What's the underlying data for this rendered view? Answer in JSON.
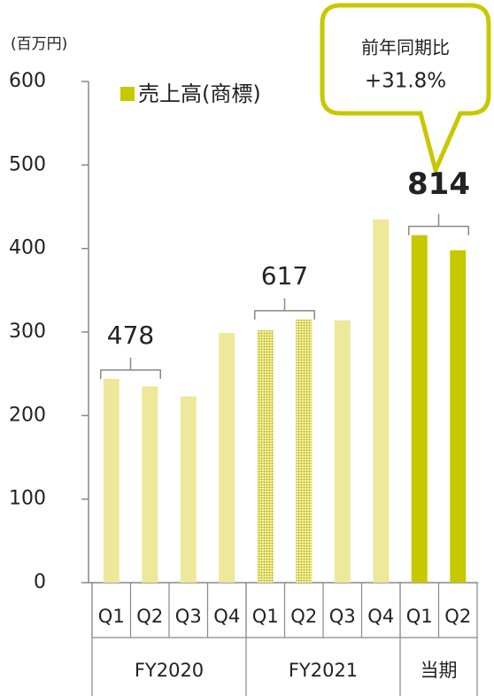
{
  "chart_data": {
    "type": "bar",
    "unit_label": "(百万円)",
    "legend": {
      "label": "売上高(商標)",
      "color": "#c8c800"
    },
    "groups": [
      {
        "label": "FY2020",
        "categories": [
          "Q1",
          "Q2",
          "Q3",
          "Q4"
        ]
      },
      {
        "label": "FY2021",
        "categories": [
          "Q1",
          "Q2",
          "Q3",
          "Q4"
        ]
      },
      {
        "label": "当期",
        "categories": [
          "Q1",
          "Q2"
        ]
      }
    ],
    "values": [
      244,
      235,
      223,
      299,
      302,
      315,
      314,
      435,
      416,
      398
    ],
    "colors": [
      "#ede89a",
      "#ede89a",
      "#ede89a",
      "#ede89a",
      "#c8c800",
      "#c8c800",
      "#ede89a",
      "#ede89a",
      "#c8c800",
      "#c8c800"
    ],
    "dotted": [
      false,
      false,
      false,
      false,
      true,
      true,
      false,
      false,
      false,
      false
    ],
    "totals": [
      478,
      617,
      814
    ],
    "callout": {
      "title": "前年同期比",
      "text": "+31.8%"
    },
    "ylim": [
      0,
      600
    ],
    "yticks": [
      0,
      100,
      200,
      300,
      400,
      500,
      600
    ]
  }
}
